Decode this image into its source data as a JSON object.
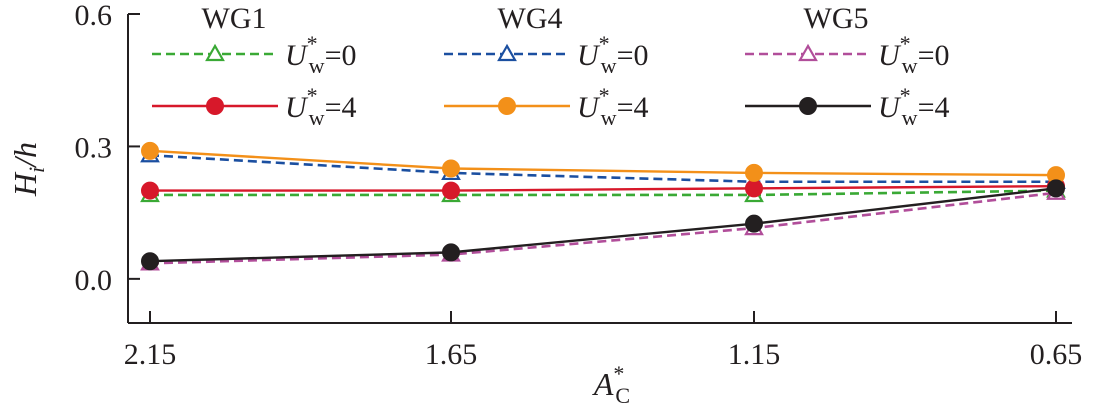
{
  "chart_data": {
    "type": "line",
    "title": "",
    "xlabel": "A*C",
    "ylabel": "Hi/h",
    "categories": [
      "2.15",
      "1.65",
      "1.15",
      "0.65"
    ],
    "y_ticks": [
      "0.0",
      "0.3",
      "0.6"
    ],
    "ylim": [
      -0.1,
      0.6
    ],
    "grid": false,
    "legend_placement": "top",
    "legend_groups": [
      "WG1",
      "WG4",
      "WG5"
    ],
    "series": [
      {
        "group": "WG1",
        "label": "U*w=0",
        "label_main": "U",
        "label_sup": "*",
        "label_sub": "w",
        "label_rest": "=0",
        "color": "#3aa935",
        "dash": true,
        "marker": "triangle-open",
        "values": [
          0.19,
          0.19,
          0.19,
          0.2
        ]
      },
      {
        "group": "WG1",
        "label": "U*w=4",
        "label_main": "U",
        "label_sup": "*",
        "label_sub": "w",
        "label_rest": "=4",
        "color": "#d7182a",
        "dash": false,
        "marker": "circle-filled",
        "values": [
          0.2,
          0.2,
          0.205,
          0.21
        ]
      },
      {
        "group": "WG4",
        "label": "U*w=0",
        "label_main": "U",
        "label_sup": "*",
        "label_sub": "w",
        "label_rest": "=0",
        "color": "#1b4fa0",
        "dash": true,
        "marker": "triangle-open",
        "values": [
          0.28,
          0.24,
          0.22,
          0.22
        ]
      },
      {
        "group": "WG4",
        "label": "U*w=4",
        "label_main": "U",
        "label_sup": "*",
        "label_sub": "w",
        "label_rest": "=4",
        "color": "#f39019",
        "dash": false,
        "marker": "circle-filled",
        "values": [
          0.29,
          0.25,
          0.24,
          0.235
        ]
      },
      {
        "group": "WG5",
        "label": "U*w=0",
        "label_main": "U",
        "label_sup": "*",
        "label_sub": "w",
        "label_rest": "=0",
        "color": "#b14e9a",
        "dash": true,
        "marker": "triangle-open",
        "values": [
          0.035,
          0.055,
          0.115,
          0.195
        ]
      },
      {
        "group": "WG5",
        "label": "U*w=4",
        "label_main": "U",
        "label_sup": "*",
        "label_sub": "w",
        "label_rest": "=4",
        "color": "#231f20",
        "dash": false,
        "marker": "circle-filled",
        "values": [
          0.04,
          0.06,
          0.125,
          0.205
        ]
      }
    ]
  }
}
